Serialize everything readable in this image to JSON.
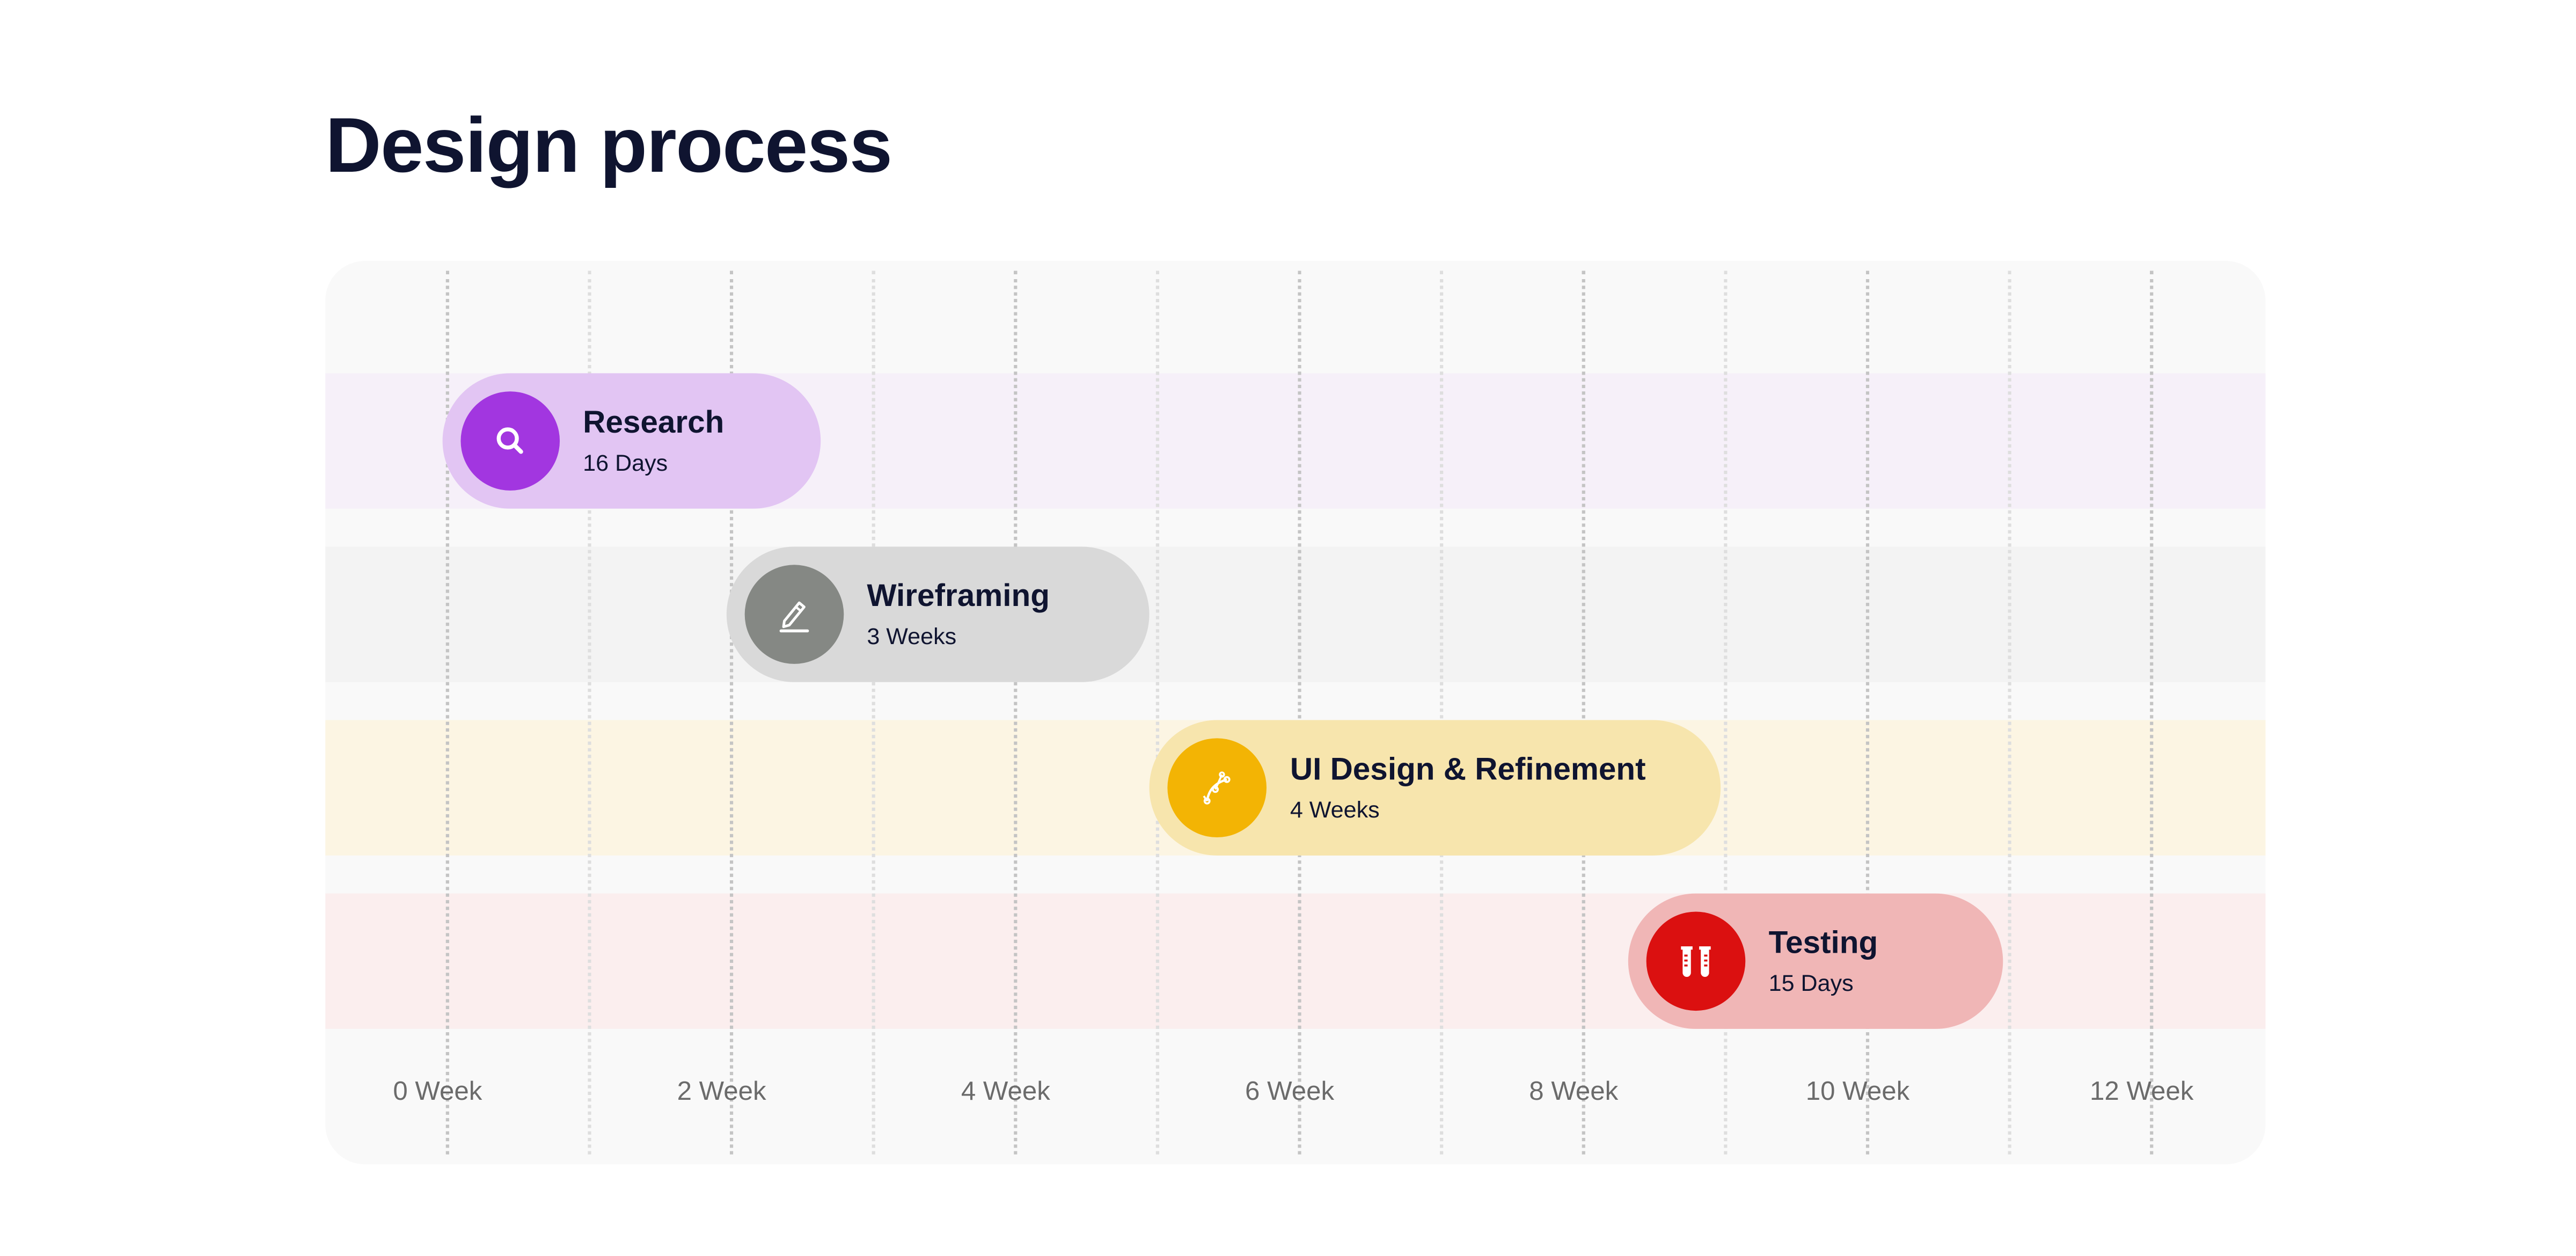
{
  "title": "Design process",
  "chart_data": {
    "type": "gantt",
    "title": "Design process",
    "x_unit": "Week",
    "xlim": [
      0,
      12
    ],
    "tick_labels": [
      "0 Week",
      "2 Week",
      "4 Week",
      "6 Week",
      "8 Week",
      "10 Week",
      "12 Week"
    ],
    "tick_values": [
      0,
      2,
      4,
      6,
      8,
      10,
      12
    ],
    "grid": true,
    "tasks": [
      {
        "name": "Research",
        "duration_label": "16 Days",
        "start_week": 0,
        "end_week": 2.66,
        "icon": "search-icon",
        "bar_color": "#e2c5f3",
        "icon_color": "#a236e0",
        "band_color": "#f6f0f9"
      },
      {
        "name": "Wireframing",
        "duration_label": "3 Weeks",
        "start_week": 2.0,
        "end_week": 4.98,
        "icon": "pencil-icon",
        "bar_color": "#d9d9d9",
        "icon_color": "#858884",
        "band_color": "#f3f3f3"
      },
      {
        "name": "UI Design & Refinement",
        "duration_label": "4 Weeks",
        "start_week": 4.98,
        "end_week": 9.0,
        "icon": "bezier-pen-icon",
        "bar_color": "#f7e5ad",
        "icon_color": "#f3b404",
        "band_color": "#fcf5e3"
      },
      {
        "name": "Testing",
        "duration_label": "15 Days",
        "start_week": 8.35,
        "end_week": 10.99,
        "icon": "test-tubes-icon",
        "bar_color": "#f0b6b6",
        "icon_color": "#db1010",
        "band_color": "#fbeeee"
      }
    ]
  }
}
